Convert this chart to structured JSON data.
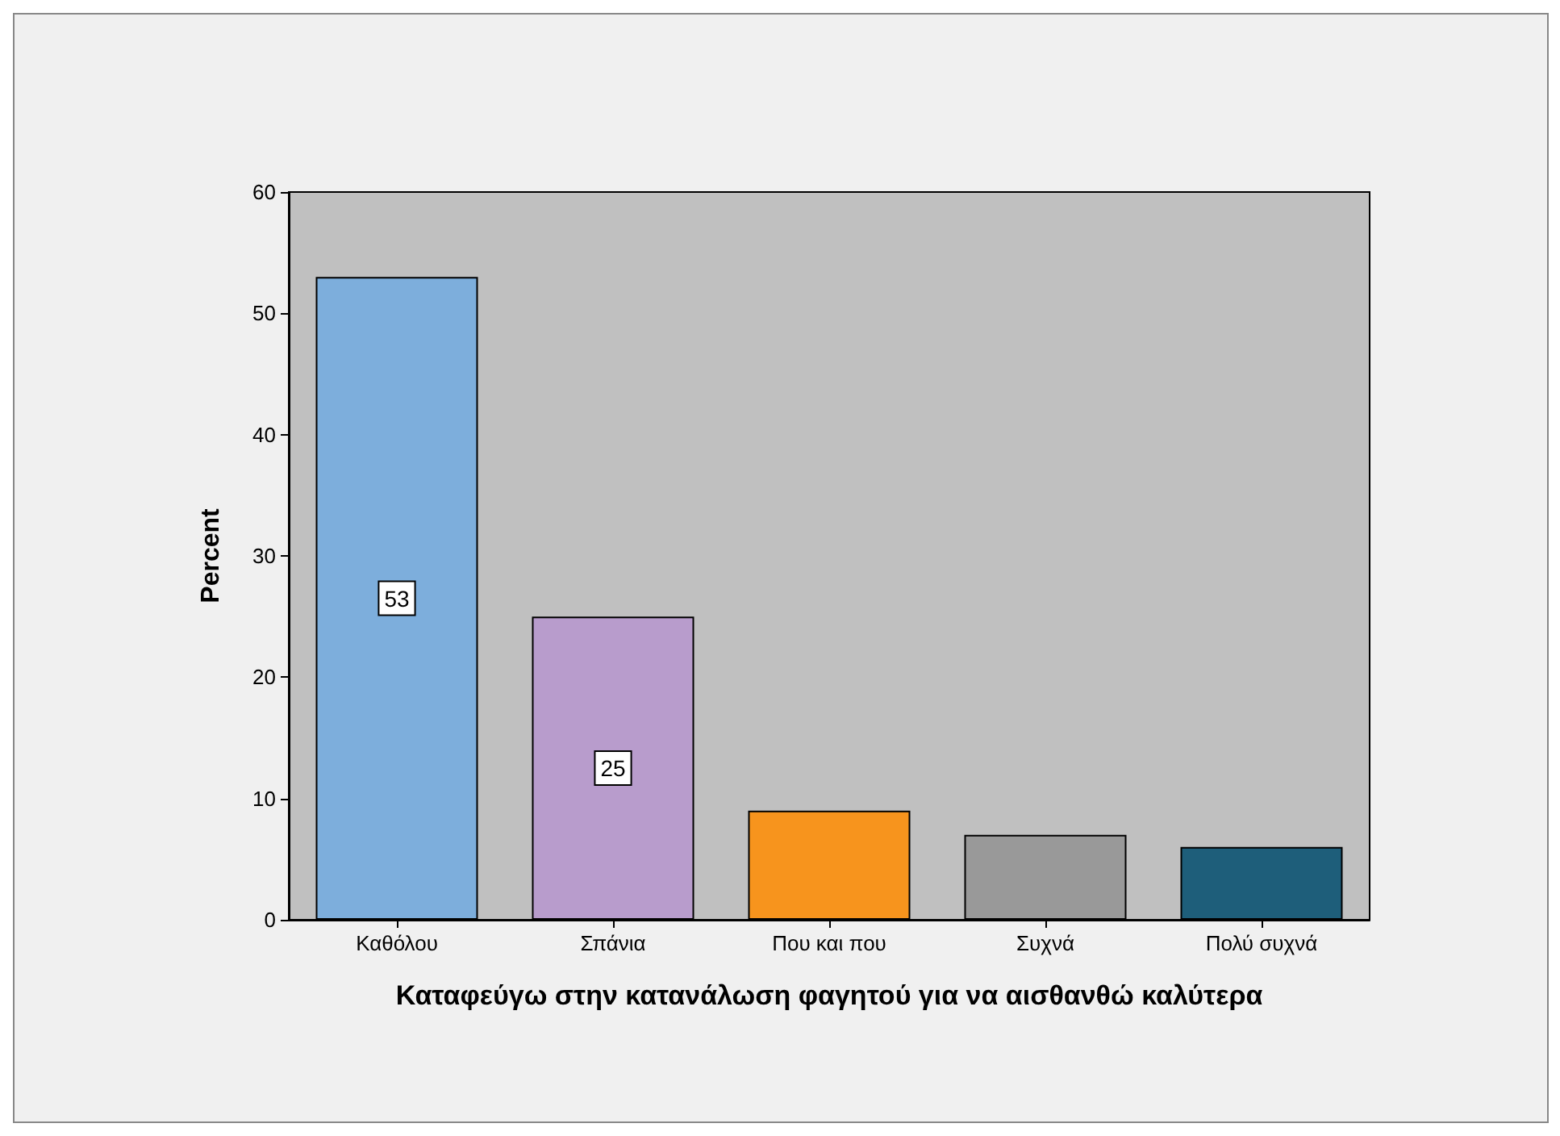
{
  "chart_data": {
    "type": "bar",
    "xlabel": "Καταφεύγω στην κατανάλωση φαγητού για να αισθανθώ καλύτερα",
    "ylabel": "Percent",
    "categories": [
      "Καθόλου",
      "Σπάνια",
      "Που και που",
      "Συχνά",
      "Πολύ συχνά"
    ],
    "values": [
      53,
      25,
      9,
      7,
      6
    ],
    "colors": [
      "#7daedc",
      "#b89ccc",
      "#f7941d",
      "#999999",
      "#1e5e7a"
    ],
    "value_labels": [
      "53",
      "25",
      null,
      null,
      null
    ],
    "ylim": [
      0,
      60
    ],
    "yticks": [
      0,
      10,
      20,
      30,
      40,
      50,
      60
    ],
    "grid": false
  }
}
